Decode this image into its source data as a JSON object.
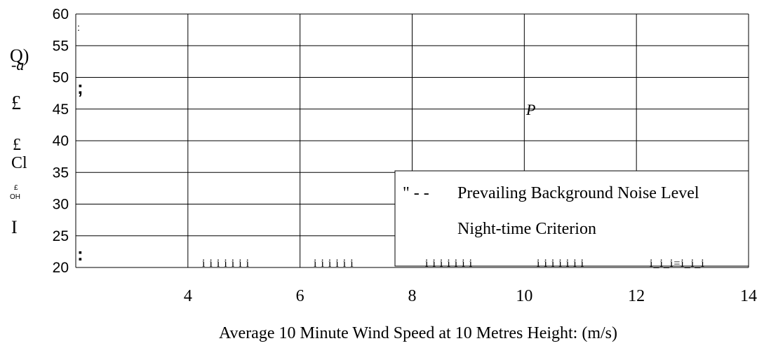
{
  "chart_data": {
    "type": "line",
    "title": "",
    "xlabel": "Average 10 Minute Wind Speed at 10 Metres Height: (m/s)",
    "ylabel": "",
    "xlim": [
      2,
      14
    ],
    "ylim": [
      20,
      60
    ],
    "x_ticks": [
      "4",
      "6",
      "8",
      "10",
      "12",
      "14"
    ],
    "y_ticks": [
      "20",
      "25",
      "30",
      "35",
      "40",
      "45",
      "50",
      "55",
      "60"
    ],
    "grid": true,
    "legend_position": "bottom-right",
    "series": [
      {
        "name": "Prevailing Background Noise Level",
        "legend_prefix": "\" - -"
      },
      {
        "name": "Night-time Criterion",
        "legend_prefix": ""
      }
    ]
  },
  "artifacts": {
    "ylabel_glyphs": [
      "Q)",
      "-a",
      "£",
      "£",
      "Cl",
      "£",
      "OH",
      "I"
    ],
    "point_label": "P",
    "colon_top": ":",
    "semicolon": ";",
    "colon_bottom": ":",
    "bottom_tick_marks": [
      "i i i i i i i",
      "i i i i i i",
      "i i i i i i i",
      "i i i i i i i",
      "i_i_i=i_i_i"
    ]
  }
}
